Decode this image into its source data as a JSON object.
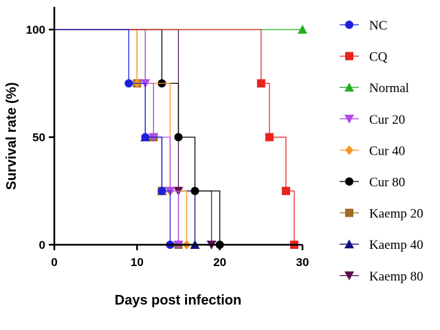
{
  "chart_data": {
    "type": "line",
    "subtype": "survival-step",
    "xlabel": "Days post infection",
    "ylabel": "Survival rate (%)",
    "xlim": [
      0,
      30
    ],
    "ylim": [
      0,
      100
    ],
    "xticks": [
      0,
      10,
      20,
      30
    ],
    "yticks": [
      0,
      50,
      100
    ],
    "grid": false,
    "legend_position": "right",
    "series": [
      {
        "name": "NC",
        "color": "#1f1fe0",
        "marker": "circle",
        "x": [
          0,
          9,
          11,
          13,
          14
        ],
        "y": [
          100,
          75,
          50,
          25,
          0
        ]
      },
      {
        "name": "CQ",
        "color": "#e8231f",
        "marker": "square",
        "x": [
          0,
          25,
          26,
          28,
          29
        ],
        "y": [
          100,
          75,
          50,
          25,
          0
        ]
      },
      {
        "name": "Normal",
        "color": "#22b020",
        "marker": "triangle-up",
        "x": [
          0,
          30
        ],
        "y": [
          100,
          100
        ]
      },
      {
        "name": "Cur 20",
        "color": "#b04ce8",
        "marker": "triangle-down",
        "x": [
          0,
          11,
          12,
          14,
          15
        ],
        "y": [
          100,
          75,
          50,
          25,
          0
        ]
      },
      {
        "name": "Cur 40",
        "color": "#f5961e",
        "marker": "diamond",
        "x": [
          0,
          10,
          14,
          16
        ],
        "y": [
          100,
          75,
          25,
          0
        ]
      },
      {
        "name": "Cur 80",
        "color": "#000000",
        "marker": "circle",
        "x": [
          0,
          13,
          15,
          17,
          20
        ],
        "y": [
          100,
          75,
          50,
          25,
          0
        ]
      },
      {
        "name": "Kaemp 20",
        "color": "#9e6a26",
        "marker": "square",
        "x": [
          0,
          10,
          12,
          13,
          15
        ],
        "y": [
          100,
          75,
          50,
          25,
          0
        ]
      },
      {
        "name": "Kaemp 40",
        "color": "#101080",
        "marker": "triangle-up",
        "x": [
          0,
          11,
          13,
          17
        ],
        "y": [
          100,
          50,
          25,
          0
        ]
      },
      {
        "name": "Kaemp 80",
        "color": "#5a1050",
        "marker": "triangle-down",
        "x": [
          0,
          15,
          19
        ],
        "y": [
          100,
          25,
          0
        ]
      }
    ]
  }
}
